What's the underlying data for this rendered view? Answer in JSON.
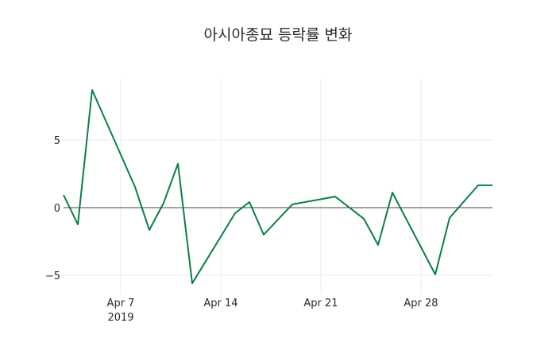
{
  "chart_data": {
    "type": "line",
    "title": "아시아종묘 등락률 변화",
    "xlabel": "",
    "ylabel": "",
    "x": [
      "2019-04-03",
      "2019-04-04",
      "2019-04-05",
      "2019-04-08",
      "2019-04-09",
      "2019-04-10",
      "2019-04-11",
      "2019-04-12",
      "2019-04-15",
      "2019-04-16",
      "2019-04-17",
      "2019-04-19",
      "2019-04-22",
      "2019-04-24",
      "2019-04-25",
      "2019-04-26",
      "2019-04-29",
      "2019-04-30",
      "2019-05-02",
      "2019-05-03"
    ],
    "series": [
      {
        "name": "등락률",
        "color": "#0a8043",
        "values": [
          0.94,
          -1.24,
          8.7,
          1.53,
          -1.65,
          0.35,
          3.24,
          -5.6,
          -0.41,
          0.41,
          -2.0,
          0.24,
          0.82,
          -0.82,
          -2.76,
          1.12,
          -4.94,
          -0.76,
          1.65,
          1.65
        ]
      }
    ],
    "ylim": [
      -6.4,
      9.5
    ],
    "yticks": [
      -5,
      0,
      5
    ],
    "ytick_labels": [
      "−5",
      "0",
      "5"
    ],
    "xticks": [
      "2019-04-07",
      "2019-04-14",
      "2019-04-21",
      "2019-04-28"
    ],
    "xtick_labels": [
      "Apr 7",
      "Apr 14",
      "Apr 21",
      "Apr 28"
    ],
    "xtick_sublabel": "2019",
    "grid": true,
    "zero_line": true,
    "legend": false
  }
}
